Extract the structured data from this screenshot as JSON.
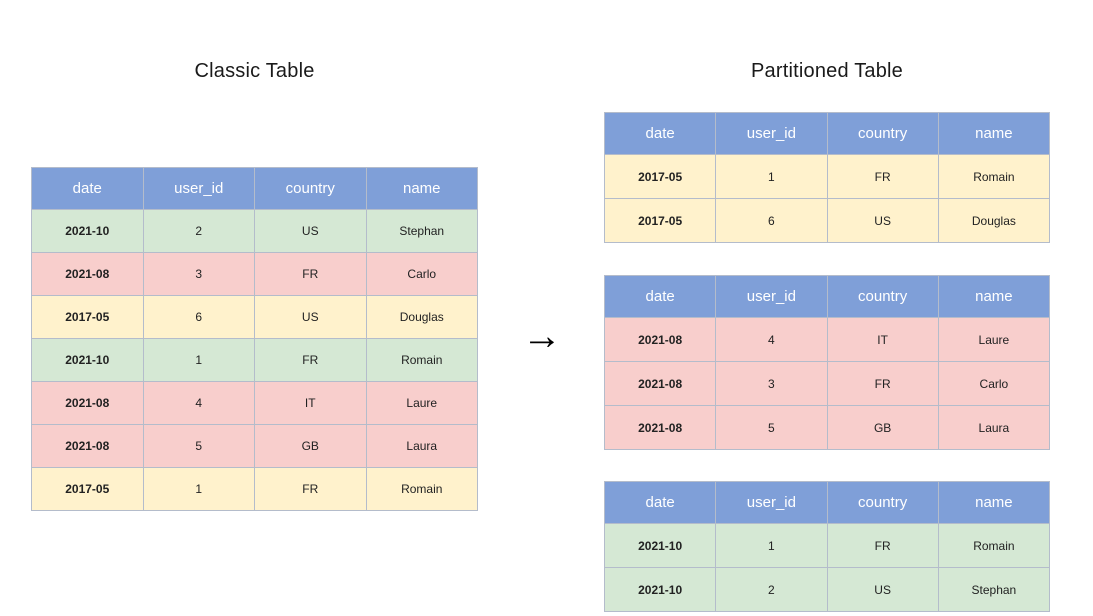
{
  "titles": {
    "classic": "Classic Table",
    "partitioned": "Partitioned Table"
  },
  "arrow_icon": "→",
  "columns": [
    "date",
    "user_id",
    "country",
    "name"
  ],
  "colors": {
    "header_bg": "#7f9fd8",
    "header_text": "#ffffff",
    "green_bg": "#d5e8d4",
    "pink_bg": "#f8cecc",
    "yellow_bg": "#fff2cc",
    "border_color": "#b4bccb"
  },
  "classic_table": {
    "rows": [
      {
        "color": "green",
        "cells": [
          "2021-10",
          "2",
          "US",
          "Stephan"
        ]
      },
      {
        "color": "pink",
        "cells": [
          "2021-08",
          "3",
          "FR",
          "Carlo"
        ]
      },
      {
        "color": "yellow",
        "cells": [
          "2017-05",
          "6",
          "US",
          "Douglas"
        ]
      },
      {
        "color": "green",
        "cells": [
          "2021-10",
          "1",
          "FR",
          "Romain"
        ]
      },
      {
        "color": "pink",
        "cells": [
          "2021-08",
          "4",
          "IT",
          "Laure"
        ]
      },
      {
        "color": "pink",
        "cells": [
          "2021-08",
          "5",
          "GB",
          "Laura"
        ]
      },
      {
        "color": "yellow",
        "cells": [
          "2017-05",
          "1",
          "FR",
          "Romain"
        ]
      }
    ]
  },
  "partitioned_tables": [
    {
      "rows": [
        {
          "color": "yellow",
          "cells": [
            "2017-05",
            "1",
            "FR",
            "Romain"
          ]
        },
        {
          "color": "yellow",
          "cells": [
            "2017-05",
            "6",
            "US",
            "Douglas"
          ]
        }
      ]
    },
    {
      "rows": [
        {
          "color": "pink",
          "cells": [
            "2021-08",
            "4",
            "IT",
            "Laure"
          ]
        },
        {
          "color": "pink",
          "cells": [
            "2021-08",
            "3",
            "FR",
            "Carlo"
          ]
        },
        {
          "color": "pink",
          "cells": [
            "2021-08",
            "5",
            "GB",
            "Laura"
          ]
        }
      ]
    },
    {
      "rows": [
        {
          "color": "green",
          "cells": [
            "2021-10",
            "1",
            "FR",
            "Romain"
          ]
        },
        {
          "color": "green",
          "cells": [
            "2021-10",
            "2",
            "US",
            "Stephan"
          ]
        }
      ]
    }
  ]
}
